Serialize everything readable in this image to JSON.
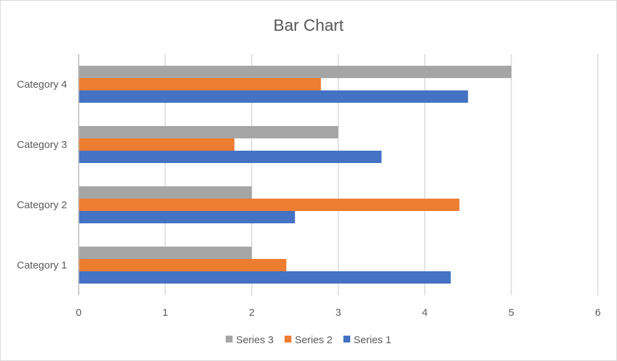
{
  "chart_data": {
    "type": "bar",
    "orientation": "horizontal",
    "title": "Bar Chart",
    "xlabel": "",
    "ylabel": "",
    "categories": [
      "Category 1",
      "Category 2",
      "Category 3",
      "Category 4"
    ],
    "series": [
      {
        "name": "Series 1",
        "color": "#4472c4",
        "values": [
          4.3,
          2.5,
          3.5,
          4.5
        ]
      },
      {
        "name": "Series 2",
        "color": "#ed7d31",
        "values": [
          2.4,
          4.4,
          1.8,
          2.8
        ]
      },
      {
        "name": "Series 3",
        "color": "#a5a5a5",
        "values": [
          2,
          2,
          3,
          5
        ]
      }
    ],
    "xlim": [
      0,
      6
    ],
    "xticks": [
      0,
      1,
      2,
      3,
      4,
      5,
      6
    ],
    "grid": true,
    "legend": {
      "position": "bottom",
      "order": [
        "Series 3",
        "Series 2",
        "Series 1"
      ]
    },
    "colors": {
      "gridline": "#d9d9d9",
      "text": "#595959"
    }
  }
}
